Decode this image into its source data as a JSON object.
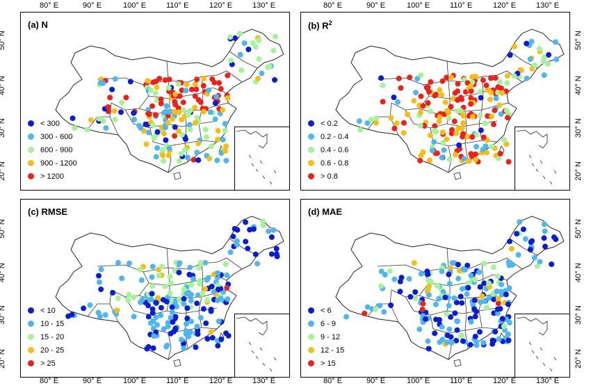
{
  "lon_ticks": [
    "80° E",
    "90° E",
    "100° E",
    "110° E",
    "120° E",
    "130° E"
  ],
  "lat_ticks": [
    "50° N",
    "40° N",
    "30° N",
    "20° N"
  ],
  "colors": {
    "c1": "#0a1ecf",
    "c2": "#4fb6ee",
    "c3": "#a6f29a",
    "c4": "#f6bd16",
    "c5": "#e8231c"
  },
  "panels": [
    {
      "id": "a",
      "label": "(a) N",
      "sup": "",
      "legend": [
        "< 300",
        "300 - 600",
        "600 - 900",
        "900 - 1200",
        "> 1200"
      ]
    },
    {
      "id": "b",
      "label": "(b) R",
      "sup": "2",
      "legend": [
        "< 0.2",
        "0.2 - 0.4",
        "0.4 - 0.6",
        "0.6 - 0.8",
        "> 0.8"
      ]
    },
    {
      "id": "c",
      "label": "(c) RMSE",
      "sup": "",
      "legend": [
        "< 10",
        "10 - 15",
        "15 - 20",
        "20 - 25",
        "> 25"
      ]
    },
    {
      "id": "d",
      "label": "(d) MAE",
      "sup": "",
      "legend": [
        "< 6",
        "6 - 9",
        "9 - 12",
        "12 - 15",
        "> 15"
      ]
    }
  ]
}
